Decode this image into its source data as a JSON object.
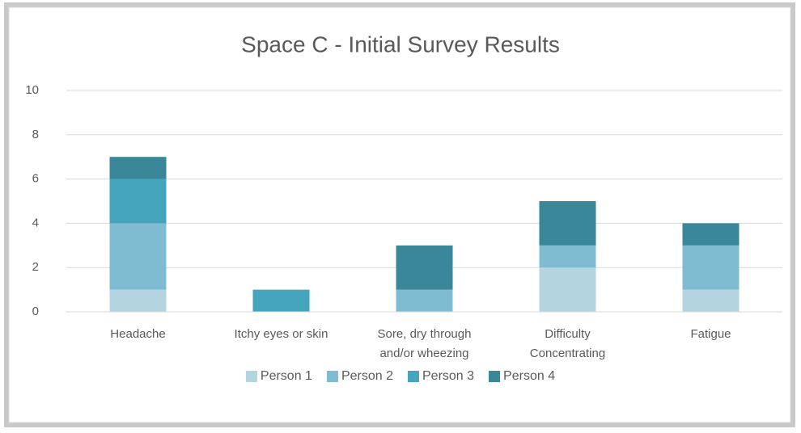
{
  "chart_data": {
    "type": "bar",
    "stacked": true,
    "title": "Space C - Initial Survey Results",
    "categories": [
      "Headache",
      "Itchy eyes or skin",
      "Sore, dry through and/or wheezing",
      "Difficulty Concentrating",
      "Fatigue"
    ],
    "series": [
      {
        "name": "Person 1",
        "color": "#b4d5e0",
        "values": [
          1,
          0,
          0,
          2,
          1
        ]
      },
      {
        "name": "Person 2",
        "color": "#7fbcd2",
        "values": [
          3,
          0,
          1,
          1,
          2
        ]
      },
      {
        "name": "Person 3",
        "color": "#45a5bd",
        "values": [
          2,
          1,
          0,
          0,
          0
        ]
      },
      {
        "name": "Person 4",
        "color": "#3a8799",
        "values": [
          1,
          0,
          2,
          2,
          1
        ]
      }
    ],
    "ylim": [
      0,
      10
    ],
    "yticks": [
      0,
      2,
      4,
      6,
      8,
      10
    ],
    "grid": true,
    "legend": "bottom"
  }
}
